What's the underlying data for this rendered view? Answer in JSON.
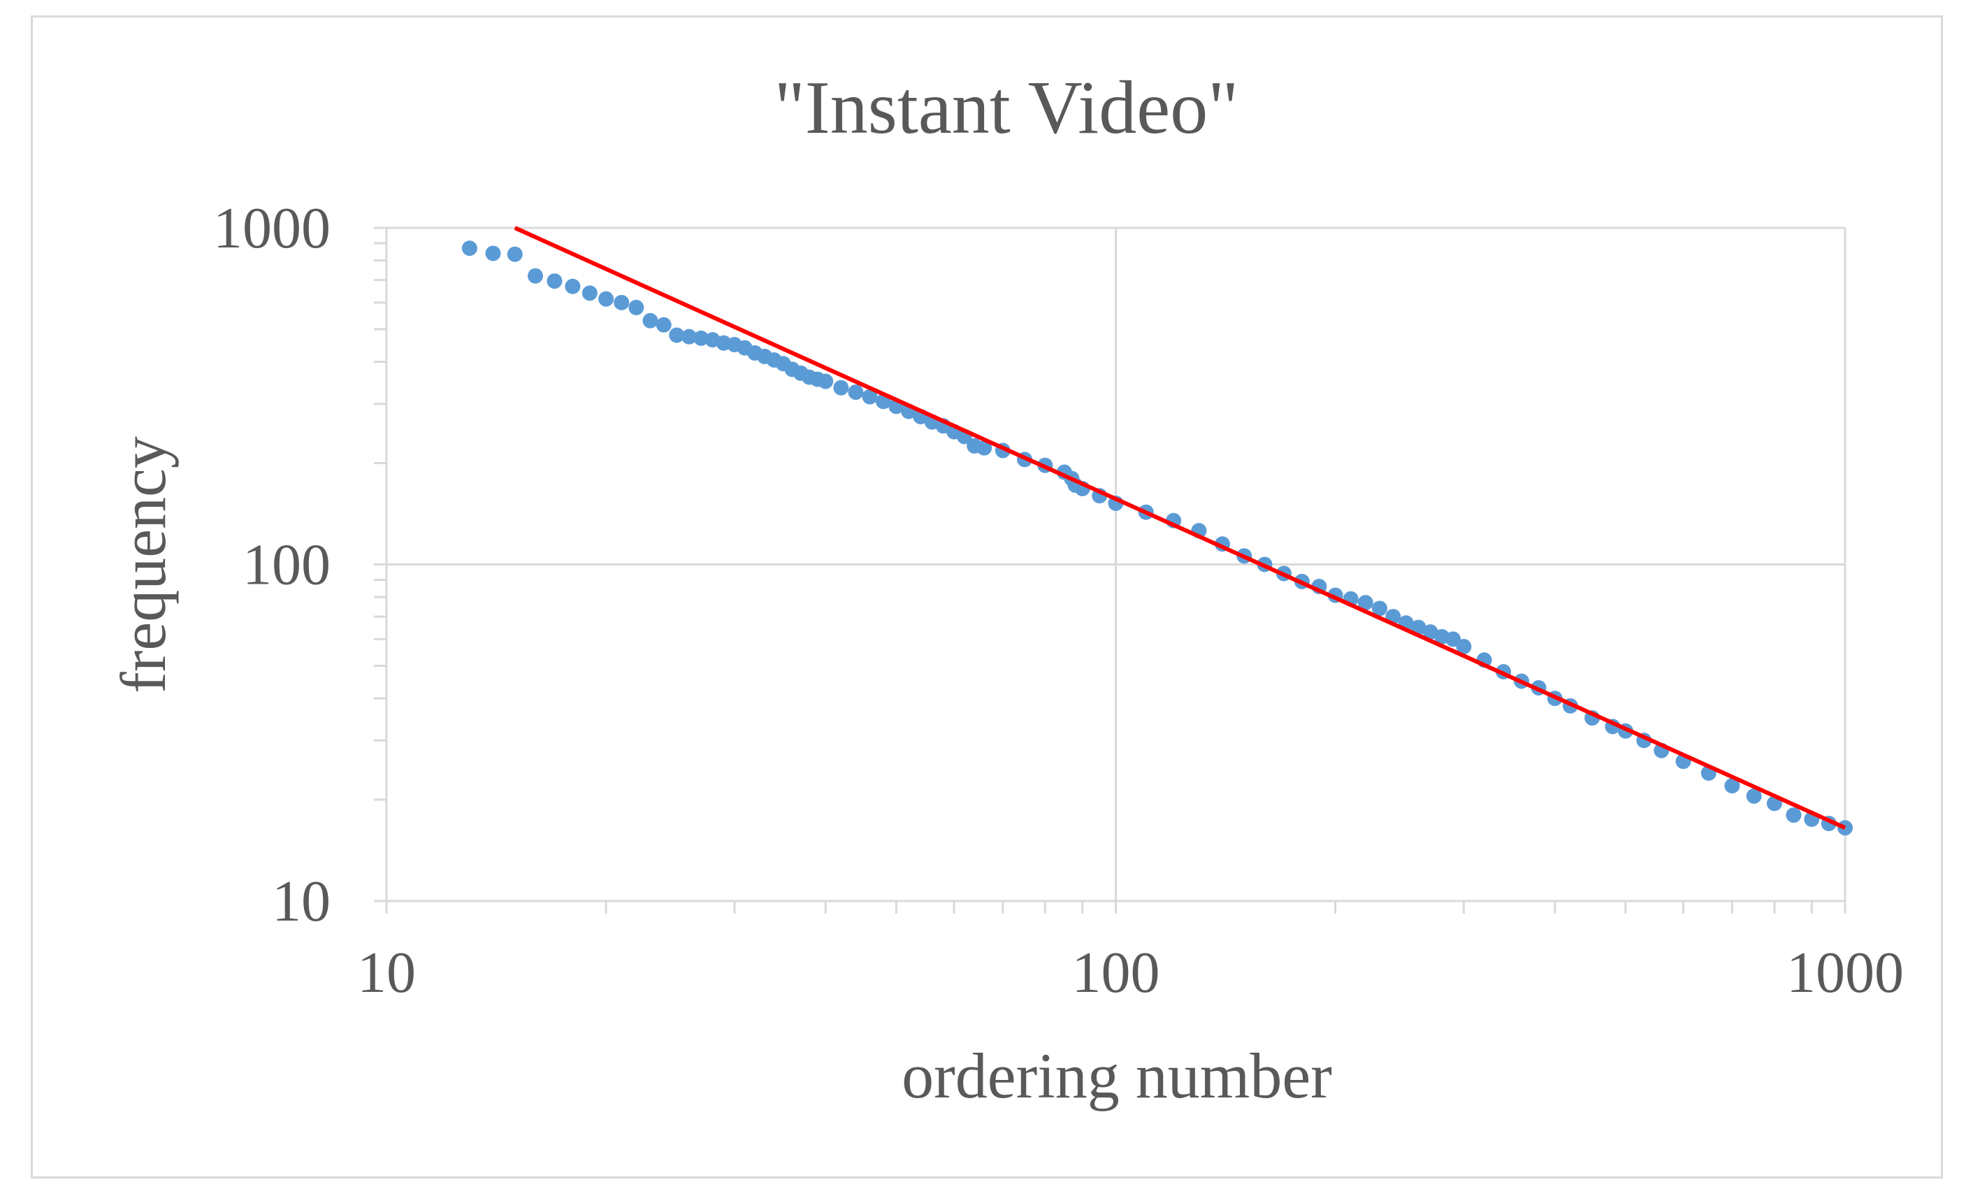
{
  "chart_data": {
    "type": "scatter",
    "title": "\"Instant Video\"",
    "xlabel": "ordering number",
    "ylabel": "frequency",
    "x_scale": "log",
    "y_scale": "log",
    "xlim": [
      10,
      1000
    ],
    "ylim": [
      10,
      1000
    ],
    "x_ticks": [
      "10",
      "100",
      "1000"
    ],
    "y_ticks": [
      "1000",
      "100",
      "10"
    ],
    "grid": true,
    "legend": "none",
    "colors": {
      "points": "#5b9bd5",
      "trend": "#ff0000",
      "grid": "#d9d9d9",
      "text": "#595959"
    },
    "series": [
      {
        "kind": "points",
        "x": [
          13,
          14,
          15,
          16,
          17,
          18,
          19,
          20,
          21,
          22,
          23,
          24,
          25,
          26,
          27,
          28,
          29,
          30,
          31,
          32,
          33,
          34,
          35,
          36,
          37,
          38,
          39,
          40,
          42,
          44,
          46,
          48,
          50,
          52,
          54,
          56,
          58,
          60,
          62,
          64,
          66,
          70,
          75,
          80,
          85,
          87,
          88,
          90,
          95,
          100,
          110,
          120,
          130,
          140,
          150,
          160,
          170,
          180,
          190,
          200,
          210,
          220,
          230,
          240,
          250,
          260,
          270,
          280,
          290,
          300,
          320,
          340,
          360,
          380,
          400,
          420,
          450,
          480,
          500,
          530,
          560,
          600,
          650,
          700,
          750,
          800,
          850,
          900,
          950,
          1000
        ],
        "y": [
          870,
          840,
          835,
          720,
          695,
          670,
          640,
          615,
          600,
          580,
          530,
          515,
          480,
          475,
          470,
          465,
          455,
          450,
          440,
          425,
          415,
          405,
          395,
          380,
          370,
          360,
          355,
          350,
          335,
          325,
          315,
          305,
          295,
          285,
          275,
          265,
          258,
          248,
          240,
          225,
          222,
          218,
          205,
          197,
          188,
          180,
          172,
          168,
          160,
          152,
          143,
          135,
          126,
          115,
          106,
          100,
          94,
          89,
          86,
          81,
          79,
          77,
          74,
          70,
          67,
          65,
          63,
          61,
          60,
          57,
          52,
          48,
          45,
          43,
          40,
          38,
          35,
          33,
          32,
          30,
          28,
          26,
          24,
          22,
          20.5,
          19.5,
          18,
          17.5,
          17,
          16.5
        ]
      },
      {
        "kind": "trendline",
        "x": [
          15,
          1000
        ],
        "y": [
          1000,
          16.5
        ]
      }
    ]
  }
}
